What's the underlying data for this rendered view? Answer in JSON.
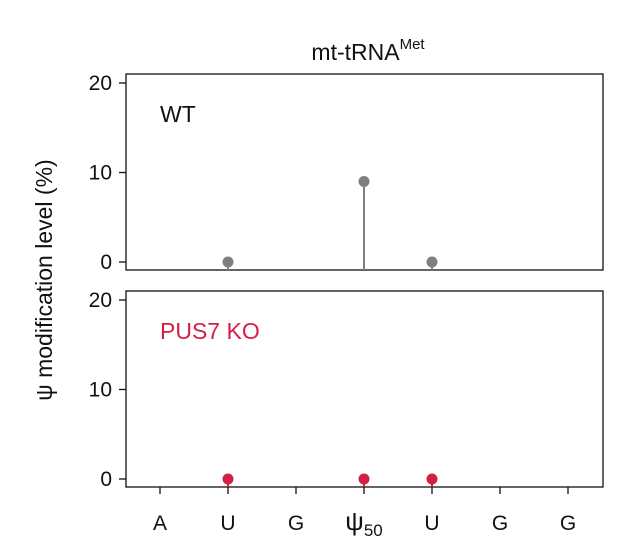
{
  "chart_data": {
    "type": "scatter",
    "style": "lollipop",
    "title": {
      "main": "mt-tRNA",
      "superscript": "Met"
    },
    "ylabel": "ψ modification level (%)",
    "categories": [
      {
        "base": "A",
        "sub": ""
      },
      {
        "base": "U",
        "sub": ""
      },
      {
        "base": "G",
        "sub": ""
      },
      {
        "base": "ψ",
        "sub": "50"
      },
      {
        "base": "U",
        "sub": ""
      },
      {
        "base": "G",
        "sub": ""
      },
      {
        "base": "G",
        "sub": ""
      }
    ],
    "highlight_category_index": 3,
    "ylim": [
      0,
      20
    ],
    "yticks": [
      "0",
      "10",
      "20"
    ],
    "grid": false,
    "panels": [
      {
        "name": "WT",
        "color": "#7f7f7f",
        "points": [
          {
            "x_index": 1,
            "y": 0
          },
          {
            "x_index": 3,
            "y": 9
          },
          {
            "x_index": 4,
            "y": 0
          }
        ]
      },
      {
        "name": "PUS7 KO",
        "color": "#d21f45",
        "points": [
          {
            "x_index": 1,
            "y": 0
          },
          {
            "x_index": 3,
            "y": 0
          },
          {
            "x_index": 4,
            "y": 0
          }
        ]
      }
    ],
    "colors": {
      "axis": "#111111",
      "highlight": "#e0202a",
      "wt": "#7f7f7f",
      "ko": "#d21f45"
    }
  }
}
